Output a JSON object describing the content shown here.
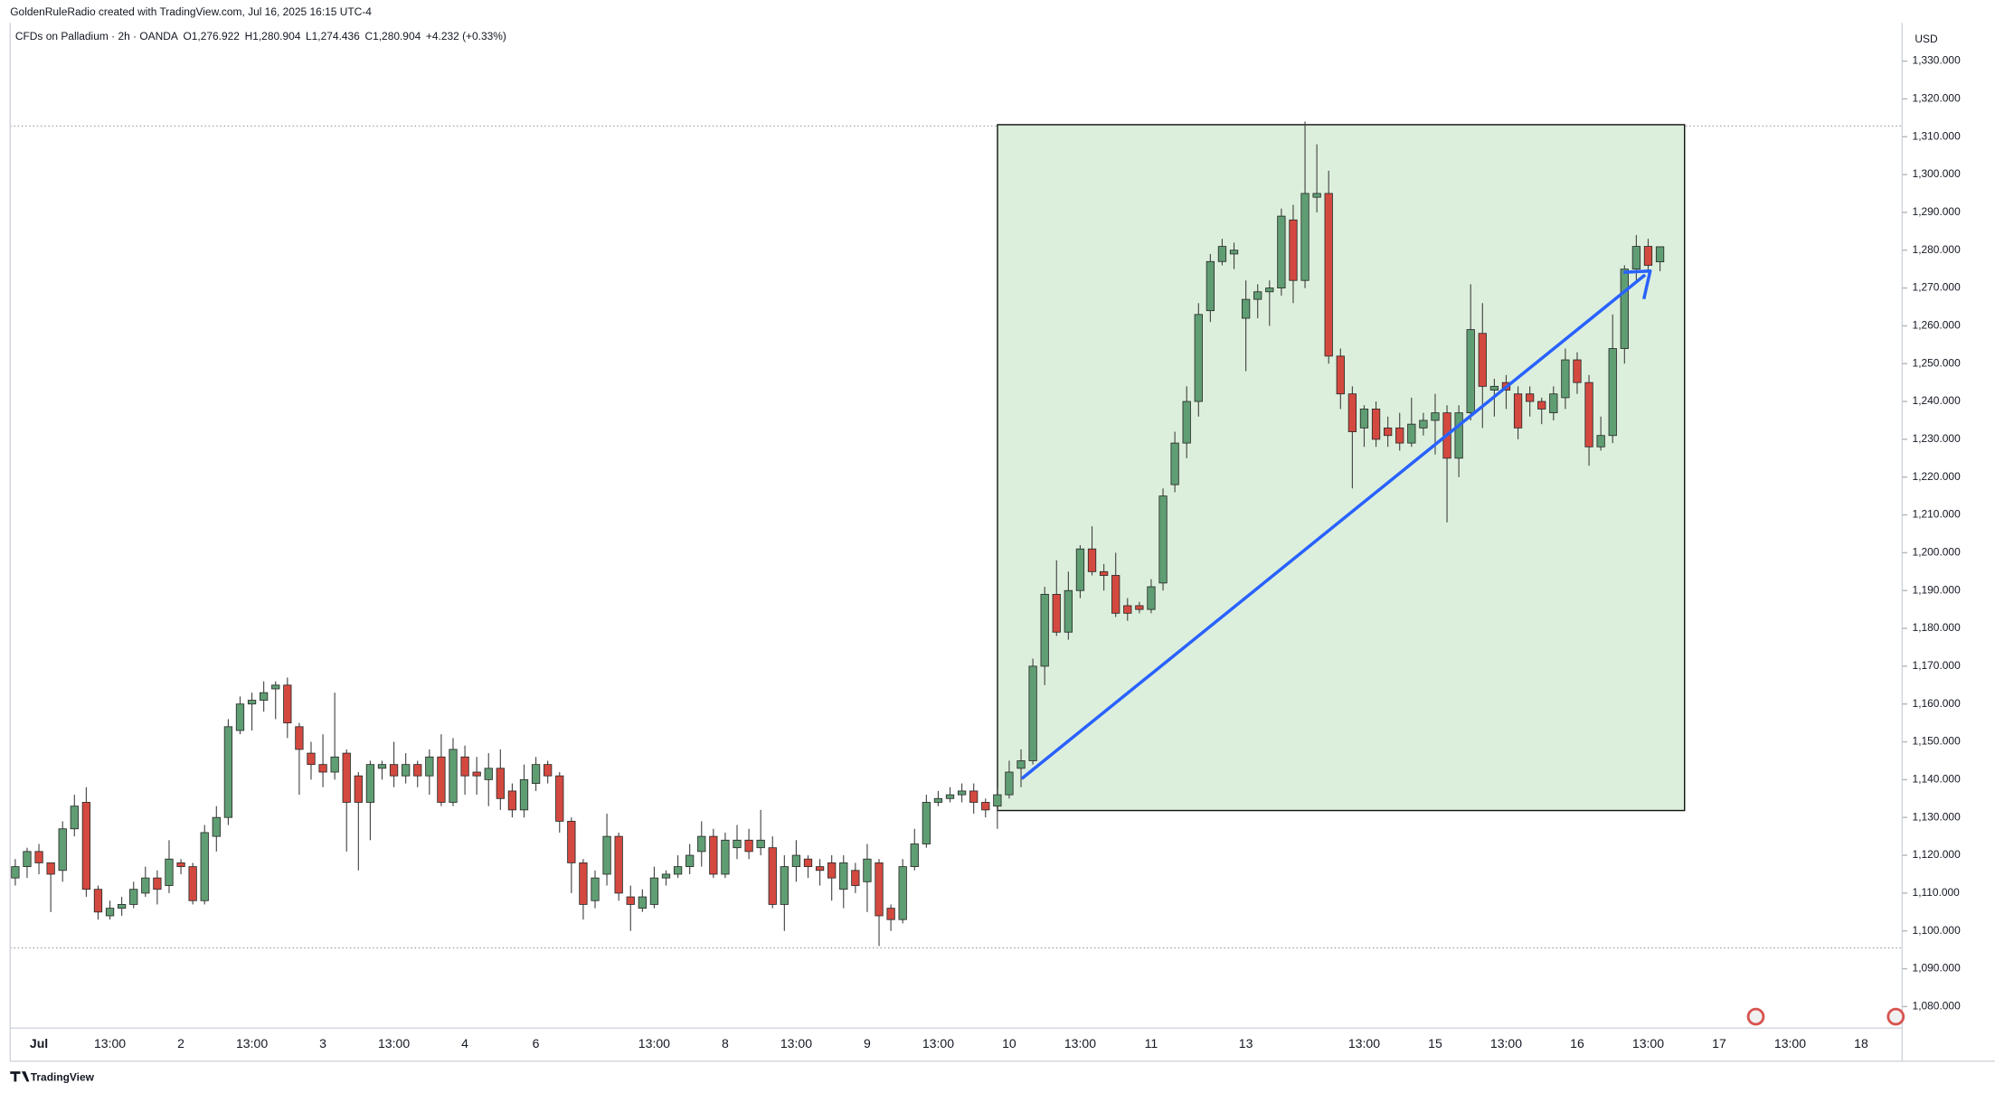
{
  "chart_data": {
    "type": "candlestick",
    "title": "GoldenRuleRadio created with TradingView.com, Jul 16, 2025 16:15 UTC-4",
    "symbol": "CFDs on Palladium · 2h · OANDA",
    "ohlc_header": [
      "O1,276.922",
      "H1,280.904",
      "L1,274.436",
      "C1,280.904",
      "+4.232 (+0.33%)"
    ],
    "currency": "USD",
    "footer": "TradingView",
    "up_color": "#5f9e73",
    "down_color": "#d4493f",
    "grid": false,
    "categories": [
      null,
      null,
      "Jul",
      null,
      null,
      null,
      null,
      null,
      "13:00",
      null,
      null,
      null,
      null,
      null,
      "2",
      null,
      null,
      null,
      null,
      null,
      "13:00",
      null,
      null,
      null,
      null,
      null,
      "3",
      null,
      null,
      null,
      null,
      null,
      "13:00",
      null,
      null,
      null,
      null,
      null,
      "4",
      null,
      null,
      null,
      null,
      null,
      "6",
      null,
      null,
      null,
      null,
      null,
      null,
      null,
      null,
      null,
      "13:00",
      null,
      null,
      null,
      null,
      null,
      "8",
      null,
      null,
      null,
      null,
      null,
      "13:00",
      null,
      null,
      null,
      null,
      null,
      "9",
      null,
      null,
      null,
      null,
      null,
      "13:00",
      null,
      null,
      null,
      null,
      null,
      "10",
      null,
      null,
      null,
      null,
      null,
      "13:00",
      null,
      null,
      null,
      null,
      null,
      "11",
      null,
      null,
      null,
      null,
      null,
      null,
      null,
      "13",
      null,
      null,
      null,
      null,
      null,
      null,
      null,
      null,
      null,
      "13:00",
      null,
      null,
      null,
      null,
      null,
      "15",
      null,
      null,
      null,
      null,
      null,
      "13:00",
      null,
      null,
      null,
      null,
      null,
      "16",
      null,
      null,
      null,
      null,
      null,
      "13:00",
      null,
      null,
      null,
      null,
      null,
      "17",
      null,
      null,
      null,
      null,
      null,
      "13:00",
      null,
      null,
      null,
      null,
      null,
      "18",
      null,
      null,
      null
    ],
    "open": [
      1114,
      1117,
      1121,
      1118,
      1116,
      1127,
      1134,
      1111,
      1104,
      1106,
      1107,
      1110,
      1114,
      1112,
      1118,
      1117,
      1108,
      1125,
      1130,
      1153,
      1160,
      1161,
      1164,
      1165,
      1154,
      1147,
      1144,
      1142,
      1147,
      1141,
      1134,
      1143,
      1144,
      1141,
      1144,
      1141,
      1146,
      1134,
      1146,
      1142,
      1140,
      1143,
      1137,
      1132,
      1139,
      1144,
      1141,
      1129,
      1118,
      1108,
      1115,
      1125,
      1109,
      1106,
      1107,
      1114,
      1115,
      1117,
      1121,
      1125,
      1115,
      1122,
      1124,
      1122,
      1122,
      1107,
      1117,
      1119,
      1117,
      1118,
      1111,
      1116,
      1113,
      1118,
      1106,
      1103,
      1117,
      1123,
      1134,
      1135,
      1136,
      1137,
      1134,
      1133,
      1136,
      1143,
      1145,
      1170,
      1189,
      1179,
      1190,
      1201,
      1195,
      1194,
      1186,
      1186,
      1185,
      1192,
      1218,
      1229,
      1240,
      1264,
      1277,
      1279,
      1262,
      1267,
      1269,
      1270,
      1288,
      1272,
      1294,
      1295,
      1252,
      1242,
      1233,
      1238,
      1233,
      1233,
      1229,
      1233,
      1235,
      1237,
      1225,
      1237,
      1258,
      1243,
      1245,
      1242,
      1242,
      1240,
      1237,
      1241,
      1251,
      1245,
      1228,
      1231,
      1254,
      1275,
      1281,
      1276.922,
      null,
      null,
      null,
      null,
      null,
      null,
      null,
      null,
      null,
      null,
      null,
      null,
      null,
      null,
      null,
      null,
      null,
      null,
      null,
      null
    ],
    "high": [
      1119,
      1122,
      1123,
      1118,
      1129,
      1136,
      1138,
      1112,
      1108,
      1109,
      1113,
      1117,
      1116,
      1124,
      1119,
      1118,
      1128,
      1133,
      1156,
      1162,
      1163,
      1166,
      1166,
      1167,
      1155,
      1150,
      1152,
      1163,
      1148,
      1142,
      1145,
      1145,
      1150,
      1147,
      1145,
      1148,
      1152,
      1151,
      1149,
      1146,
      1147,
      1148,
      1139,
      1144,
      1146,
      1145,
      1142,
      1130,
      1119,
      1116,
      1131,
      1126,
      1112,
      1111,
      1117,
      1116,
      1120,
      1123,
      1129,
      1127,
      1126,
      1128,
      1127,
      1132,
      1125,
      1120,
      1124,
      1120,
      1119,
      1120,
      1120,
      1118,
      1123,
      1119,
      1107,
      1119,
      1127,
      1136,
      1137,
      1138,
      1139,
      1139,
      1135,
      1138,
      1145,
      1148,
      1172,
      1191,
      1198,
      1195,
      1202,
      1207,
      1197,
      1200,
      1188,
      1187,
      1193,
      1217,
      1232,
      1244,
      1266,
      1279,
      1283,
      1282,
      1272,
      1271,
      1272,
      1291,
      1292,
      1314,
      1308,
      1301,
      1254,
      1244,
      1239,
      1240,
      1236,
      1237,
      1241,
      1237,
      1242,
      1239,
      1239,
      1271,
      1266,
      1246,
      1247,
      1244,
      1244,
      1241,
      1244,
      1254,
      1253,
      1247,
      1236,
      1263,
      1276,
      1284,
      1283,
      1280.904,
      null,
      null,
      null,
      null,
      null,
      null,
      null,
      null,
      null,
      null,
      null,
      null,
      null,
      null,
      null,
      null,
      null,
      null,
      null,
      null
    ],
    "low": [
      1112,
      1114,
      1115,
      1105,
      1113,
      1125,
      1109,
      1103,
      1103,
      1104,
      1106,
      1109,
      1107,
      1110,
      1115,
      1107,
      1107,
      1121,
      1128,
      1152,
      1153,
      1158,
      1156,
      1151,
      1136,
      1140,
      1138,
      1140,
      1121,
      1116,
      1124,
      1140,
      1138,
      1139,
      1138,
      1136,
      1133,
      1133,
      1136,
      1136,
      1133,
      1132,
      1130,
      1130,
      1137,
      1139,
      1126,
      1110,
      1103,
      1106,
      1112,
      1108,
      1100,
      1105,
      1106,
      1112,
      1114,
      1115,
      1117,
      1114,
      1114,
      1119,
      1119,
      1120,
      1106,
      1100,
      1113,
      1114,
      1112,
      1108,
      1106,
      1110,
      1105,
      1096,
      1100,
      1102,
      1116,
      1122,
      1133,
      1134,
      1134,
      1131,
      1130,
      1127,
      1135,
      1138,
      1144,
      1165,
      1178,
      1177,
      1188,
      1194,
      1190,
      1183,
      1182,
      1184,
      1184,
      1190,
      1216,
      1225,
      1236,
      1261,
      1276,
      1275,
      1248,
      1262,
      1260,
      1268,
      1266,
      1270,
      1290,
      1250,
      1238,
      1217,
      1228,
      1228,
      1228,
      1227,
      1228,
      1231,
      1226,
      1208,
      1220,
      1235,
      1233,
      1236,
      1238,
      1230,
      1236,
      1234,
      1235,
      1238,
      1242,
      1223,
      1227,
      1229,
      1250,
      1272,
      1274,
      1274.436,
      null,
      null,
      null,
      null,
      null,
      null,
      null,
      null,
      null,
      null,
      null,
      null,
      null,
      null,
      null,
      null,
      null,
      null,
      null,
      null
    ],
    "close": [
      1117,
      1121,
      1118,
      1115,
      1127,
      1133,
      1111,
      1105,
      1106,
      1107,
      1111,
      1114,
      1111,
      1119,
      1117,
      1108,
      1126,
      1130,
      1154,
      1160,
      1161,
      1163,
      1165,
      1155,
      1148,
      1144,
      1142,
      1146,
      1134,
      1134,
      1144,
      1144,
      1141,
      1144,
      1141,
      1146,
      1134,
      1148,
      1141,
      1141,
      1143,
      1135,
      1132,
      1140,
      1144,
      1141,
      1129,
      1118,
      1107,
      1114,
      1125,
      1110,
      1107,
      1109,
      1114,
      1115,
      1117,
      1120,
      1125,
      1115,
      1124,
      1124,
      1121,
      1124,
      1107,
      1117,
      1120,
      1117,
      1116,
      1114,
      1118,
      1112,
      1119,
      1104,
      1103,
      1117,
      1123,
      1134,
      1135,
      1136,
      1137,
      1134,
      1132,
      1136,
      1142,
      1145,
      1170,
      1189,
      1179,
      1190,
      1201,
      1195,
      1194,
      1184,
      1184,
      1185,
      1191,
      1215,
      1229,
      1240,
      1263,
      1277,
      1281,
      1280,
      1267,
      1269,
      1270,
      1289,
      1272,
      1295,
      1295,
      1252,
      1242,
      1232,
      1238,
      1230,
      1231,
      1229,
      1234,
      1235,
      1237,
      1225,
      1237,
      1259,
      1244,
      1244,
      1243,
      1233,
      1240,
      1238,
      1242,
      1251,
      1245,
      1228,
      1231,
      1254,
      1275,
      1281,
      1276,
      1280.904,
      null,
      null,
      null,
      null,
      null,
      null,
      null,
      null,
      null,
      null,
      null,
      null,
      null,
      null,
      null,
      null,
      null,
      null,
      null,
      null
    ],
    "ylim": [
      1074.3,
      1340.1
    ],
    "yticks": [
      {
        "value": 1080,
        "label": "1,080.000"
      },
      {
        "value": 1090,
        "label": "1,090.000"
      },
      {
        "value": 1100,
        "label": "1,100.000"
      },
      {
        "value": 1110,
        "label": "1,110.000"
      },
      {
        "value": 1120,
        "label": "1,120.000"
      },
      {
        "value": 1130,
        "label": "1,130.000"
      },
      {
        "value": 1140,
        "label": "1,140.000"
      },
      {
        "value": 1150,
        "label": "1,150.000"
      },
      {
        "value": 1160,
        "label": "1,160.000"
      },
      {
        "value": 1170,
        "label": "1,170.000"
      },
      {
        "value": 1180,
        "label": "1,180.000"
      },
      {
        "value": 1190,
        "label": "1,190.000"
      },
      {
        "value": 1200,
        "label": "1,200.000"
      },
      {
        "value": 1210,
        "label": "1,210.000"
      },
      {
        "value": 1220,
        "label": "1,220.000"
      },
      {
        "value": 1230,
        "label": "1,230.000"
      },
      {
        "value": 1240,
        "label": "1,240.000"
      },
      {
        "value": 1250,
        "label": "1,250.000"
      },
      {
        "value": 1260,
        "label": "1,260.000"
      },
      {
        "value": 1270,
        "label": "1,270.000"
      },
      {
        "value": 1280,
        "label": "1,280.000"
      },
      {
        "value": 1290,
        "label": "1,290.000"
      },
      {
        "value": 1300,
        "label": "1,300.000"
      },
      {
        "value": 1310,
        "label": "1,310.000"
      },
      {
        "value": 1320,
        "label": "1,320.000"
      },
      {
        "value": 1330,
        "label": "1,330.000"
      }
    ]
  }
}
